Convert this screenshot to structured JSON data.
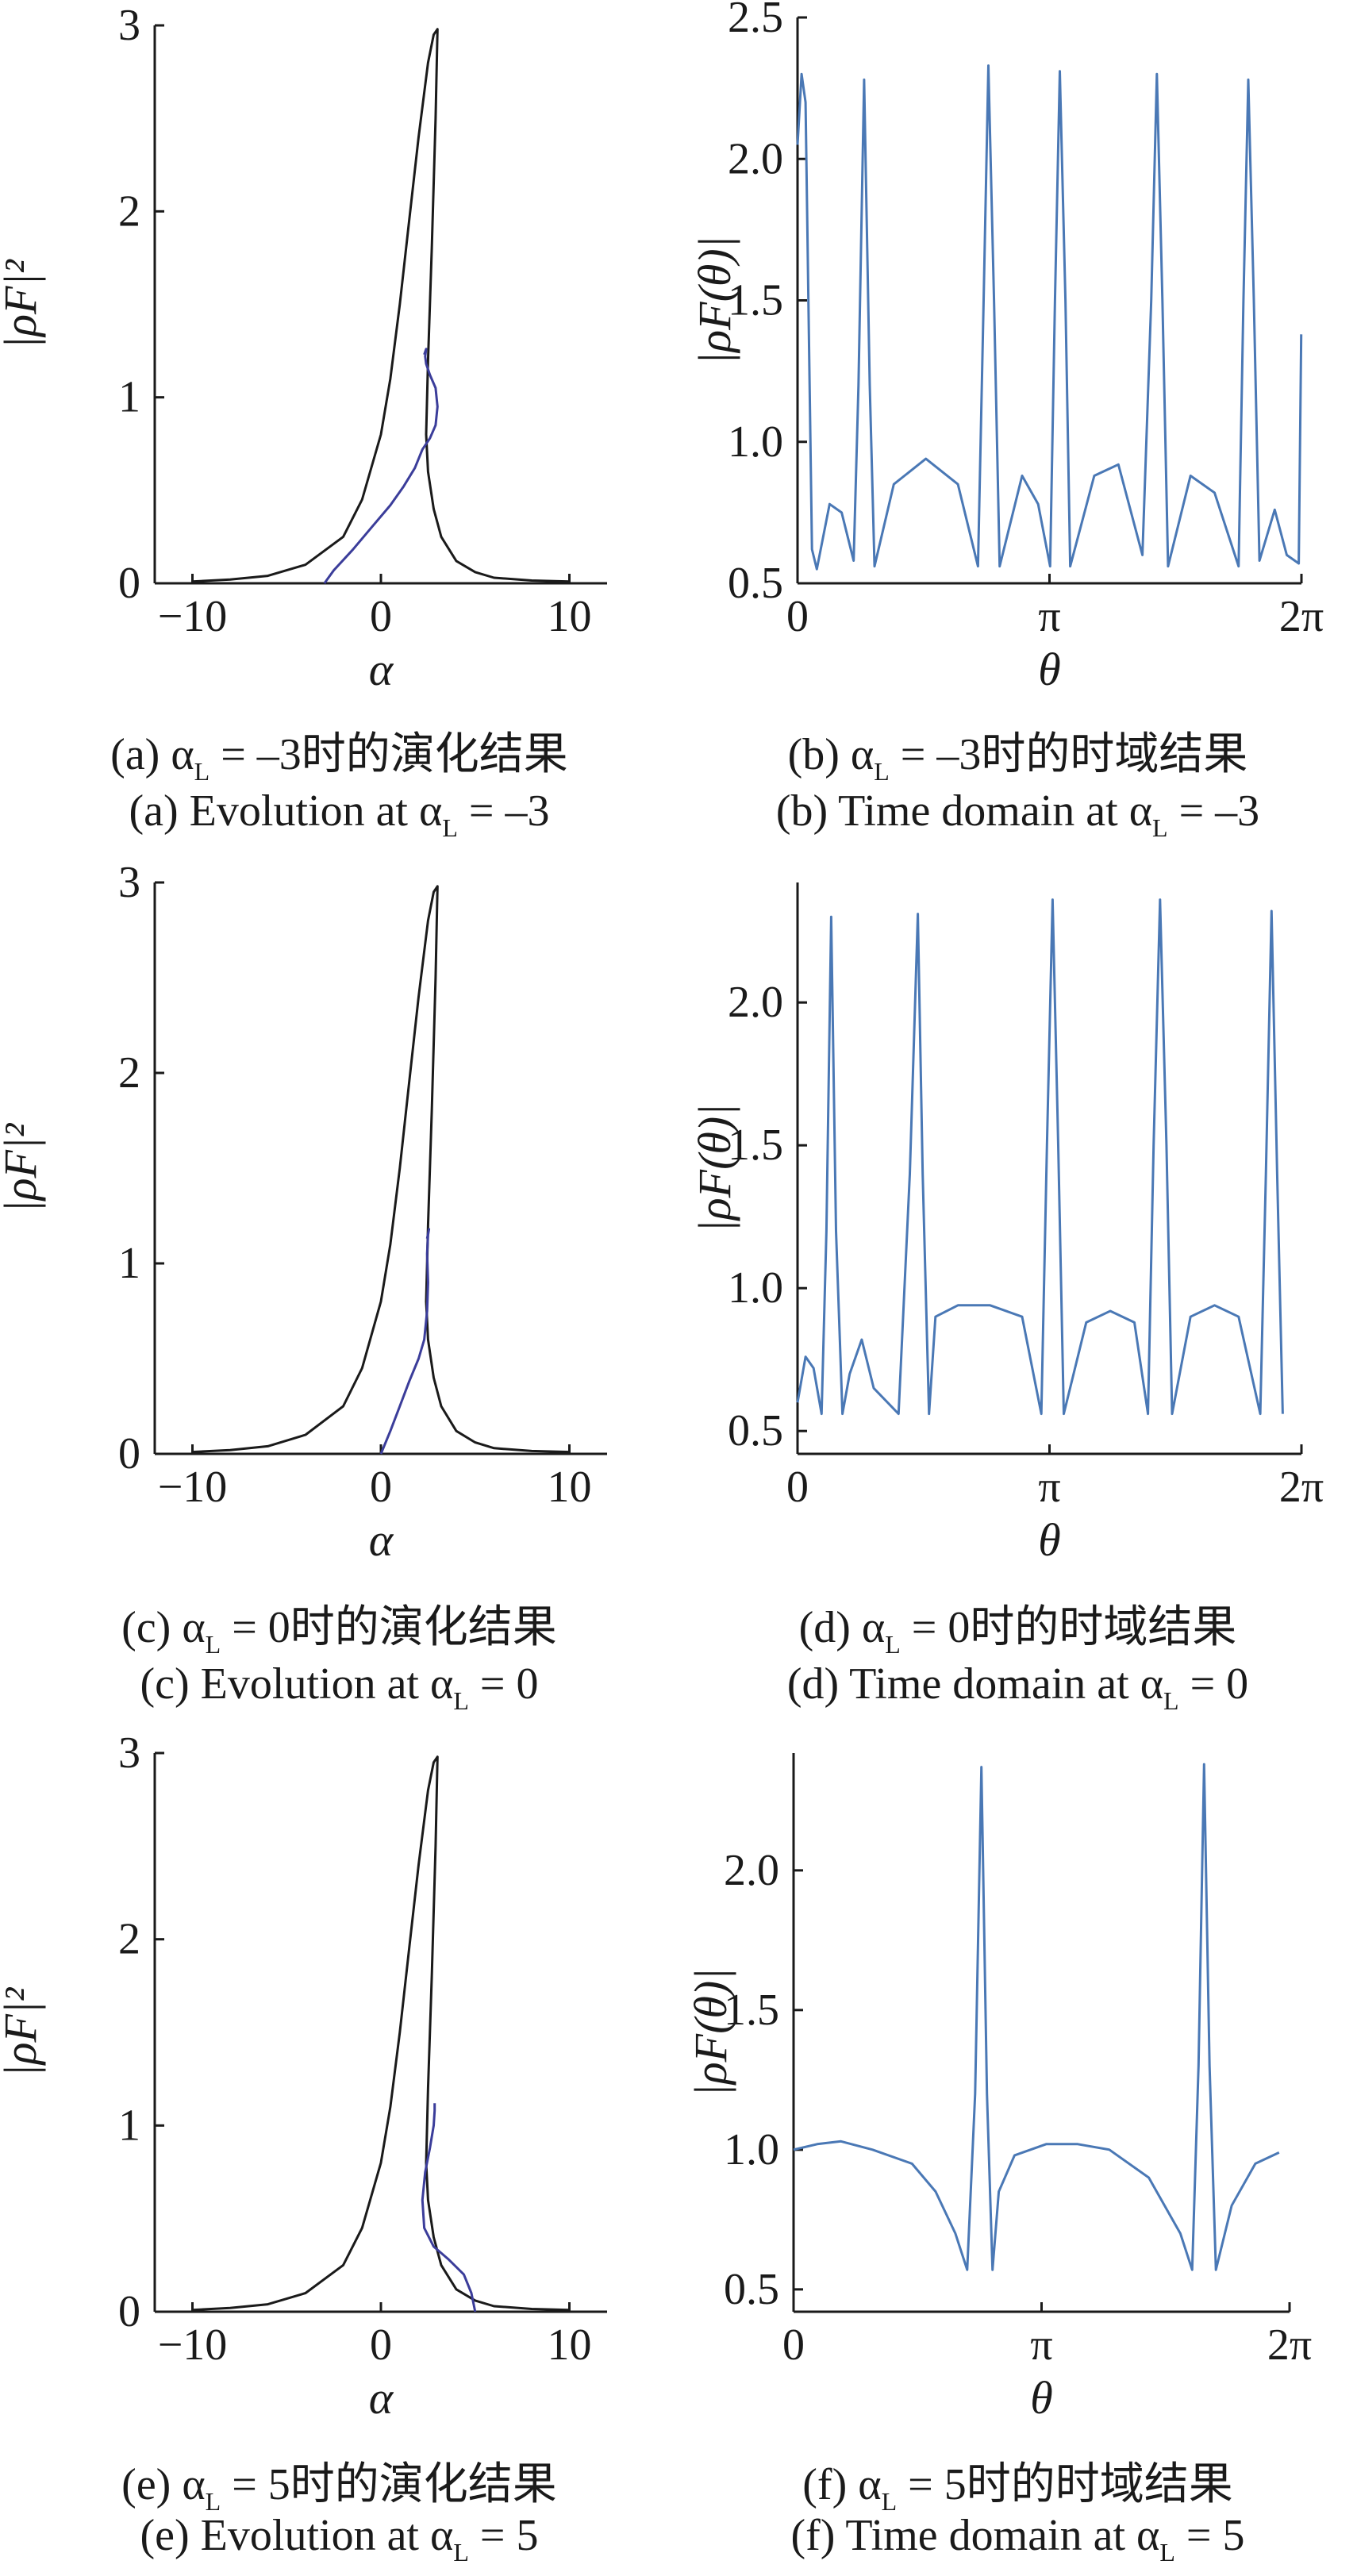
{
  "colors": {
    "black_curve": "#1a1a1a",
    "purple_curve": "#3b3d9a",
    "blue_curve": "#4a78b5"
  },
  "panels": {
    "a": {
      "caption_cn": {
        "prefix": "(a) α",
        "sub": "L",
        "suffix": " = –3时的演化结果"
      },
      "caption_en": {
        "prefix": "(a) Evolution at α",
        "sub": "L",
        "suffix": " = –3"
      }
    },
    "b": {
      "caption_cn": {
        "prefix": "(b) α",
        "sub": "L",
        "suffix": " = –3时的时域结果"
      },
      "caption_en": {
        "prefix": "(b) Time domain at α",
        "sub": "L",
        "suffix": " = –3"
      }
    },
    "c": {
      "caption_cn": {
        "prefix": "(c) α",
        "sub": "L",
        "suffix": " = 0时的演化结果"
      },
      "caption_en": {
        "prefix": "(c) Evolution at α",
        "sub": "L",
        "suffix": " = 0"
      }
    },
    "d": {
      "caption_cn": {
        "prefix": "(d) α",
        "sub": "L",
        "suffix": " = 0时的时域结果"
      },
      "caption_en": {
        "prefix": "(d) Time domain at α",
        "sub": "L",
        "suffix": " = 0"
      }
    },
    "e": {
      "caption_cn": {
        "prefix": "(e) α",
        "sub": "L",
        "suffix": " = 5时的演化结果"
      },
      "caption_en": {
        "prefix": "(e) Evolution at α",
        "sub": "L",
        "suffix": " = 5"
      }
    },
    "f": {
      "caption_cn": {
        "prefix": "(f) α",
        "sub": "L",
        "suffix": " = 5时的时域结果"
      },
      "caption_en": {
        "prefix": "(f) Time domain at α",
        "sub": "L",
        "suffix": " = 5"
      }
    }
  },
  "chart_data": [
    {
      "id": "a",
      "type": "line",
      "xlabel": "α",
      "ylabel": "|ρF|²",
      "xlim": [
        -12,
        12
      ],
      "ylim": [
        0,
        3
      ],
      "xticks": [
        {
          "v": -10,
          "label": "−10"
        },
        {
          "v": 0,
          "label": "0"
        },
        {
          "v": 10,
          "label": "10"
        }
      ],
      "yticks": [
        {
          "v": 0,
          "label": "0"
        },
        {
          "v": 1,
          "label": "1"
        },
        {
          "v": 2,
          "label": "2"
        },
        {
          "v": 3,
          "label": "3"
        }
      ],
      "series": [
        {
          "color": "#1a1a1a",
          "x": [
            -10,
            -8,
            -6,
            -4,
            -2,
            -1,
            0,
            0.5,
            1,
            1.5,
            2,
            2.5,
            2.8,
            3.0,
            2.9,
            2.7,
            2.5,
            2.4,
            2.5,
            2.8,
            3.2,
            4,
            5,
            6,
            8,
            10
          ],
          "y": [
            0.01,
            0.02,
            0.04,
            0.1,
            0.25,
            0.45,
            0.8,
            1.1,
            1.5,
            1.95,
            2.4,
            2.8,
            2.95,
            2.98,
            2.5,
            1.8,
            1.2,
            0.8,
            0.6,
            0.4,
            0.25,
            0.12,
            0.06,
            0.03,
            0.015,
            0.01
          ]
        },
        {
          "color": "#3b3d9a",
          "x": [
            -3,
            -2.5,
            -1.5,
            -0.5,
            0.5,
            1.2,
            1.8,
            2.2,
            2.6,
            2.9,
            3.0,
            2.9,
            2.6,
            2.4,
            2.35,
            2.4,
            2.3
          ],
          "y": [
            0.0,
            0.07,
            0.18,
            0.3,
            0.42,
            0.52,
            0.62,
            0.72,
            0.78,
            0.85,
            0.95,
            1.05,
            1.12,
            1.18,
            1.22,
            1.26,
            1.23
          ]
        }
      ]
    },
    {
      "id": "b",
      "type": "line",
      "xlabel": "θ",
      "ylabel": "|ρF(θ)|",
      "xlim": [
        0,
        6.2832
      ],
      "ylim": [
        0.5,
        2.5
      ],
      "xticks": [
        {
          "v": 0,
          "label": "0"
        },
        {
          "v": 3.1416,
          "label": "π"
        },
        {
          "v": 6.2832,
          "label": "2π"
        }
      ],
      "yticks": [
        {
          "v": 0.5,
          "label": "0.5"
        },
        {
          "v": 1.0,
          "label": "1.0"
        },
        {
          "v": 1.5,
          "label": "1.5"
        },
        {
          "v": 2.0,
          "label": "2.0"
        },
        {
          "v": 2.5,
          "label": "2.5"
        }
      ],
      "series": [
        {
          "color": "#4a78b5",
          "x": [
            0,
            0.05,
            0.1,
            0.18,
            0.24,
            0.4,
            0.55,
            0.7,
            0.76,
            0.83,
            0.9,
            0.96,
            1.2,
            1.6,
            2.0,
            2.25,
            2.32,
            2.38,
            2.45,
            2.52,
            2.8,
            3.0,
            3.15,
            3.21,
            3.27,
            3.34,
            3.4,
            3.7,
            4.0,
            4.3,
            4.41,
            4.48,
            4.55,
            4.62,
            4.9,
            5.2,
            5.5,
            5.56,
            5.62,
            5.69,
            5.76,
            5.95,
            6.1,
            6.25,
            6.28
          ],
          "y": [
            2.05,
            2.3,
            2.2,
            0.62,
            0.55,
            0.78,
            0.75,
            0.58,
            1.2,
            2.28,
            1.2,
            0.56,
            0.85,
            0.94,
            0.85,
            0.56,
            1.5,
            2.33,
            1.5,
            0.56,
            0.88,
            0.78,
            0.56,
            1.5,
            2.31,
            1.5,
            0.56,
            0.88,
            0.92,
            0.6,
            1.5,
            2.3,
            1.5,
            0.56,
            0.88,
            0.82,
            0.56,
            1.5,
            2.28,
            1.5,
            0.58,
            0.76,
            0.6,
            0.57,
            1.38
          ]
        }
      ]
    },
    {
      "id": "c",
      "type": "line",
      "xlabel": "α",
      "ylabel": "|ρF|²",
      "xlim": [
        -12,
        12
      ],
      "ylim": [
        0,
        3
      ],
      "xticks": [
        {
          "v": -10,
          "label": "−10"
        },
        {
          "v": 0,
          "label": "0"
        },
        {
          "v": 10,
          "label": "10"
        }
      ],
      "yticks": [
        {
          "v": 0,
          "label": "0"
        },
        {
          "v": 1,
          "label": "1"
        },
        {
          "v": 2,
          "label": "2"
        },
        {
          "v": 3,
          "label": "3"
        }
      ],
      "series": [
        {
          "color": "#1a1a1a",
          "x": [
            -10,
            -8,
            -6,
            -4,
            -2,
            -1,
            0,
            0.5,
            1,
            1.5,
            2,
            2.5,
            2.8,
            3.0,
            2.9,
            2.7,
            2.5,
            2.4,
            2.5,
            2.8,
            3.2,
            4,
            5,
            6,
            8,
            10
          ],
          "y": [
            0.01,
            0.02,
            0.04,
            0.1,
            0.25,
            0.45,
            0.8,
            1.1,
            1.5,
            1.95,
            2.4,
            2.8,
            2.95,
            2.98,
            2.5,
            1.8,
            1.2,
            0.8,
            0.6,
            0.4,
            0.25,
            0.12,
            0.06,
            0.03,
            0.015,
            0.01
          ]
        },
        {
          "color": "#3b3d9a",
          "x": [
            0,
            0.5,
            1.0,
            1.5,
            2.0,
            2.3,
            2.45,
            2.5,
            2.45,
            2.5,
            2.55,
            2.45
          ],
          "y": [
            0.0,
            0.12,
            0.25,
            0.38,
            0.5,
            0.6,
            0.75,
            0.9,
            1.05,
            1.15,
            1.18,
            1.13
          ]
        }
      ]
    },
    {
      "id": "d",
      "type": "line",
      "xlabel": "θ",
      "ylabel": "|ρF(θ)|",
      "xlim": [
        0,
        6.2832
      ],
      "ylim": [
        0.42,
        2.42
      ],
      "xticks": [
        {
          "v": 0,
          "label": "0"
        },
        {
          "v": 3.1416,
          "label": "π"
        },
        {
          "v": 6.2832,
          "label": "2π"
        }
      ],
      "yticks": [
        {
          "v": 0.5,
          "label": "0.5"
        },
        {
          "v": 1.0,
          "label": "1.0"
        },
        {
          "v": 1.5,
          "label": "1.5"
        },
        {
          "v": 2.0,
          "label": "2.0"
        }
      ],
      "series": [
        {
          "color": "#4a78b5",
          "x": [
            0,
            0.1,
            0.2,
            0.3,
            0.36,
            0.42,
            0.48,
            0.56,
            0.65,
            0.8,
            0.95,
            1.26,
            1.4,
            1.5,
            1.56,
            1.64,
            1.72,
            2.0,
            2.4,
            2.8,
            3.04,
            3.11,
            3.18,
            3.25,
            3.32,
            3.6,
            3.9,
            4.2,
            4.37,
            4.44,
            4.52,
            4.6,
            4.67,
            4.9,
            5.2,
            5.5,
            5.77,
            5.84,
            5.91,
            5.98,
            6.05
          ],
          "y": [
            0.6,
            0.76,
            0.72,
            0.56,
            1.2,
            2.3,
            1.2,
            0.56,
            0.7,
            0.82,
            0.65,
            0.56,
            1.4,
            2.31,
            1.4,
            0.56,
            0.9,
            0.94,
            0.94,
            0.9,
            0.56,
            1.5,
            2.36,
            1.5,
            0.56,
            0.88,
            0.92,
            0.88,
            0.56,
            1.5,
            2.36,
            1.5,
            0.56,
            0.9,
            0.94,
            0.9,
            0.56,
            1.4,
            2.32,
            1.4,
            0.56
          ]
        }
      ]
    },
    {
      "id": "e",
      "type": "line",
      "xlabel": "α",
      "ylabel": "|ρF|²",
      "xlim": [
        -12,
        12
      ],
      "ylim": [
        0,
        3
      ],
      "xticks": [
        {
          "v": -10,
          "label": "−10"
        },
        {
          "v": 0,
          "label": "0"
        },
        {
          "v": 10,
          "label": "10"
        }
      ],
      "yticks": [
        {
          "v": 0,
          "label": "0"
        },
        {
          "v": 1,
          "label": "1"
        },
        {
          "v": 2,
          "label": "2"
        },
        {
          "v": 3,
          "label": "3"
        }
      ],
      "series": [
        {
          "color": "#1a1a1a",
          "x": [
            -10,
            -8,
            -6,
            -4,
            -2,
            -1,
            0,
            0.5,
            1,
            1.5,
            2,
            2.5,
            2.8,
            3.0,
            2.9,
            2.7,
            2.5,
            2.4,
            2.5,
            2.8,
            3.2,
            4,
            5,
            6,
            8,
            10
          ],
          "y": [
            0.01,
            0.02,
            0.04,
            0.1,
            0.25,
            0.45,
            0.8,
            1.1,
            1.5,
            1.95,
            2.4,
            2.8,
            2.95,
            2.98,
            2.5,
            1.8,
            1.2,
            0.8,
            0.6,
            0.4,
            0.25,
            0.12,
            0.06,
            0.03,
            0.015,
            0.01
          ]
        },
        {
          "color": "#3b3d9a",
          "x": [
            5,
            4.8,
            4.4,
            3.6,
            2.8,
            2.3,
            2.2,
            2.35,
            2.6,
            2.8,
            2.85,
            2.85
          ],
          "y": [
            0.0,
            0.1,
            0.2,
            0.28,
            0.35,
            0.45,
            0.6,
            0.75,
            0.88,
            1.0,
            1.08,
            1.12
          ]
        }
      ]
    },
    {
      "id": "f",
      "type": "line",
      "xlabel": "θ",
      "ylabel": "|ρF(θ)|",
      "xlim": [
        0,
        6.2832
      ],
      "ylim": [
        0.42,
        2.42
      ],
      "xticks": [
        {
          "v": 0,
          "label": "0"
        },
        {
          "v": 3.1416,
          "label": "π"
        },
        {
          "v": 6.2832,
          "label": "2π"
        }
      ],
      "yticks": [
        {
          "v": 0.5,
          "label": "0.5"
        },
        {
          "v": 1.0,
          "label": "1.0"
        },
        {
          "v": 1.5,
          "label": "1.5"
        },
        {
          "v": 2.0,
          "label": "2.0"
        }
      ],
      "series": [
        {
          "color": "#4a78b5",
          "x": [
            0,
            0.3,
            0.6,
            1.0,
            1.5,
            1.8,
            2.05,
            2.2,
            2.3,
            2.38,
            2.45,
            2.52,
            2.6,
            2.8,
            3.2,
            3.6,
            4.0,
            4.5,
            4.9,
            5.05,
            5.13,
            5.2,
            5.27,
            5.35,
            5.55,
            5.85,
            6.15
          ],
          "y": [
            1.0,
            1.02,
            1.03,
            1.0,
            0.95,
            0.85,
            0.7,
            0.57,
            1.2,
            2.37,
            1.2,
            0.57,
            0.85,
            0.98,
            1.02,
            1.02,
            1.0,
            0.9,
            0.7,
            0.57,
            1.3,
            2.38,
            1.3,
            0.57,
            0.8,
            0.95,
            0.99
          ]
        }
      ]
    }
  ]
}
